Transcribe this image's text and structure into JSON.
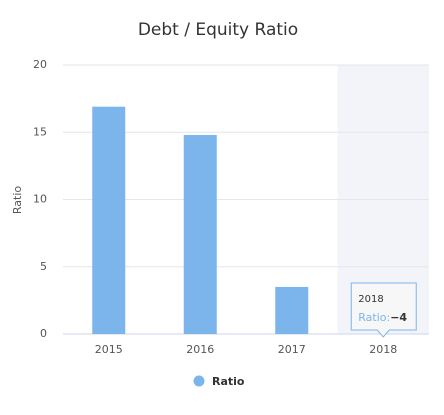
{
  "chart_data": {
    "type": "bar",
    "title": "Debt / Equity Ratio",
    "y_label": "Ratio",
    "categories": [
      "2015",
      "2016",
      "2017",
      "2018"
    ],
    "series": [
      {
        "name": "Ratio",
        "color": "#7cb5ec",
        "values": [
          16.9,
          14.8,
          3.5,
          -4
        ],
        "value_labels": [
          null,
          null,
          null,
          "−4"
        ]
      }
    ],
    "ylim": [
      0,
      20
    ],
    "yticks": [
      0,
      5,
      10,
      15,
      20
    ],
    "grid": true,
    "legend": "bottom",
    "highlight_category": 3,
    "tooltip": {
      "label": "Ratio:"
    }
  }
}
